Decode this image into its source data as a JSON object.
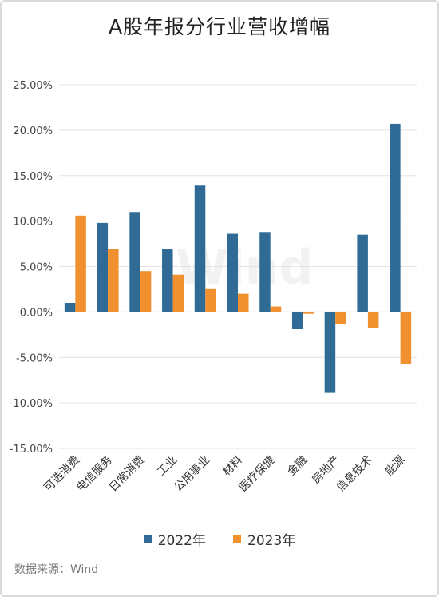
{
  "title": "A股年报分行业营收增幅",
  "source": "数据来源：Wind",
  "watermark": "Wind",
  "chart_data": {
    "type": "bar",
    "title": "A股年报分行业营收增幅",
    "categories": [
      "可选消费",
      "电信服务",
      "日常消费",
      "工业",
      "公用事业",
      "材料",
      "医疗保健",
      "金融",
      "房地产",
      "信息技术",
      "能源"
    ],
    "series": [
      {
        "name": "2022年",
        "color": "#2f6b94",
        "values": [
          1.0,
          9.8,
          11.0,
          6.9,
          13.9,
          8.6,
          8.8,
          -1.9,
          -8.9,
          8.5,
          20.7
        ]
      },
      {
        "name": "2023年",
        "color": "#f0902f",
        "values": [
          10.6,
          6.9,
          4.5,
          4.1,
          2.6,
          2.0,
          0.6,
          -0.2,
          -1.3,
          -1.8,
          -5.7
        ]
      }
    ],
    "yticks": [
      "25.00%",
      "20.00%",
      "15.00%",
      "10.00%",
      "5.00%",
      "0.00%",
      "-5.00%",
      "-10.00%",
      "-15.00%"
    ],
    "ylim": [
      -15,
      25
    ],
    "grid": true,
    "legend": "bottom"
  }
}
